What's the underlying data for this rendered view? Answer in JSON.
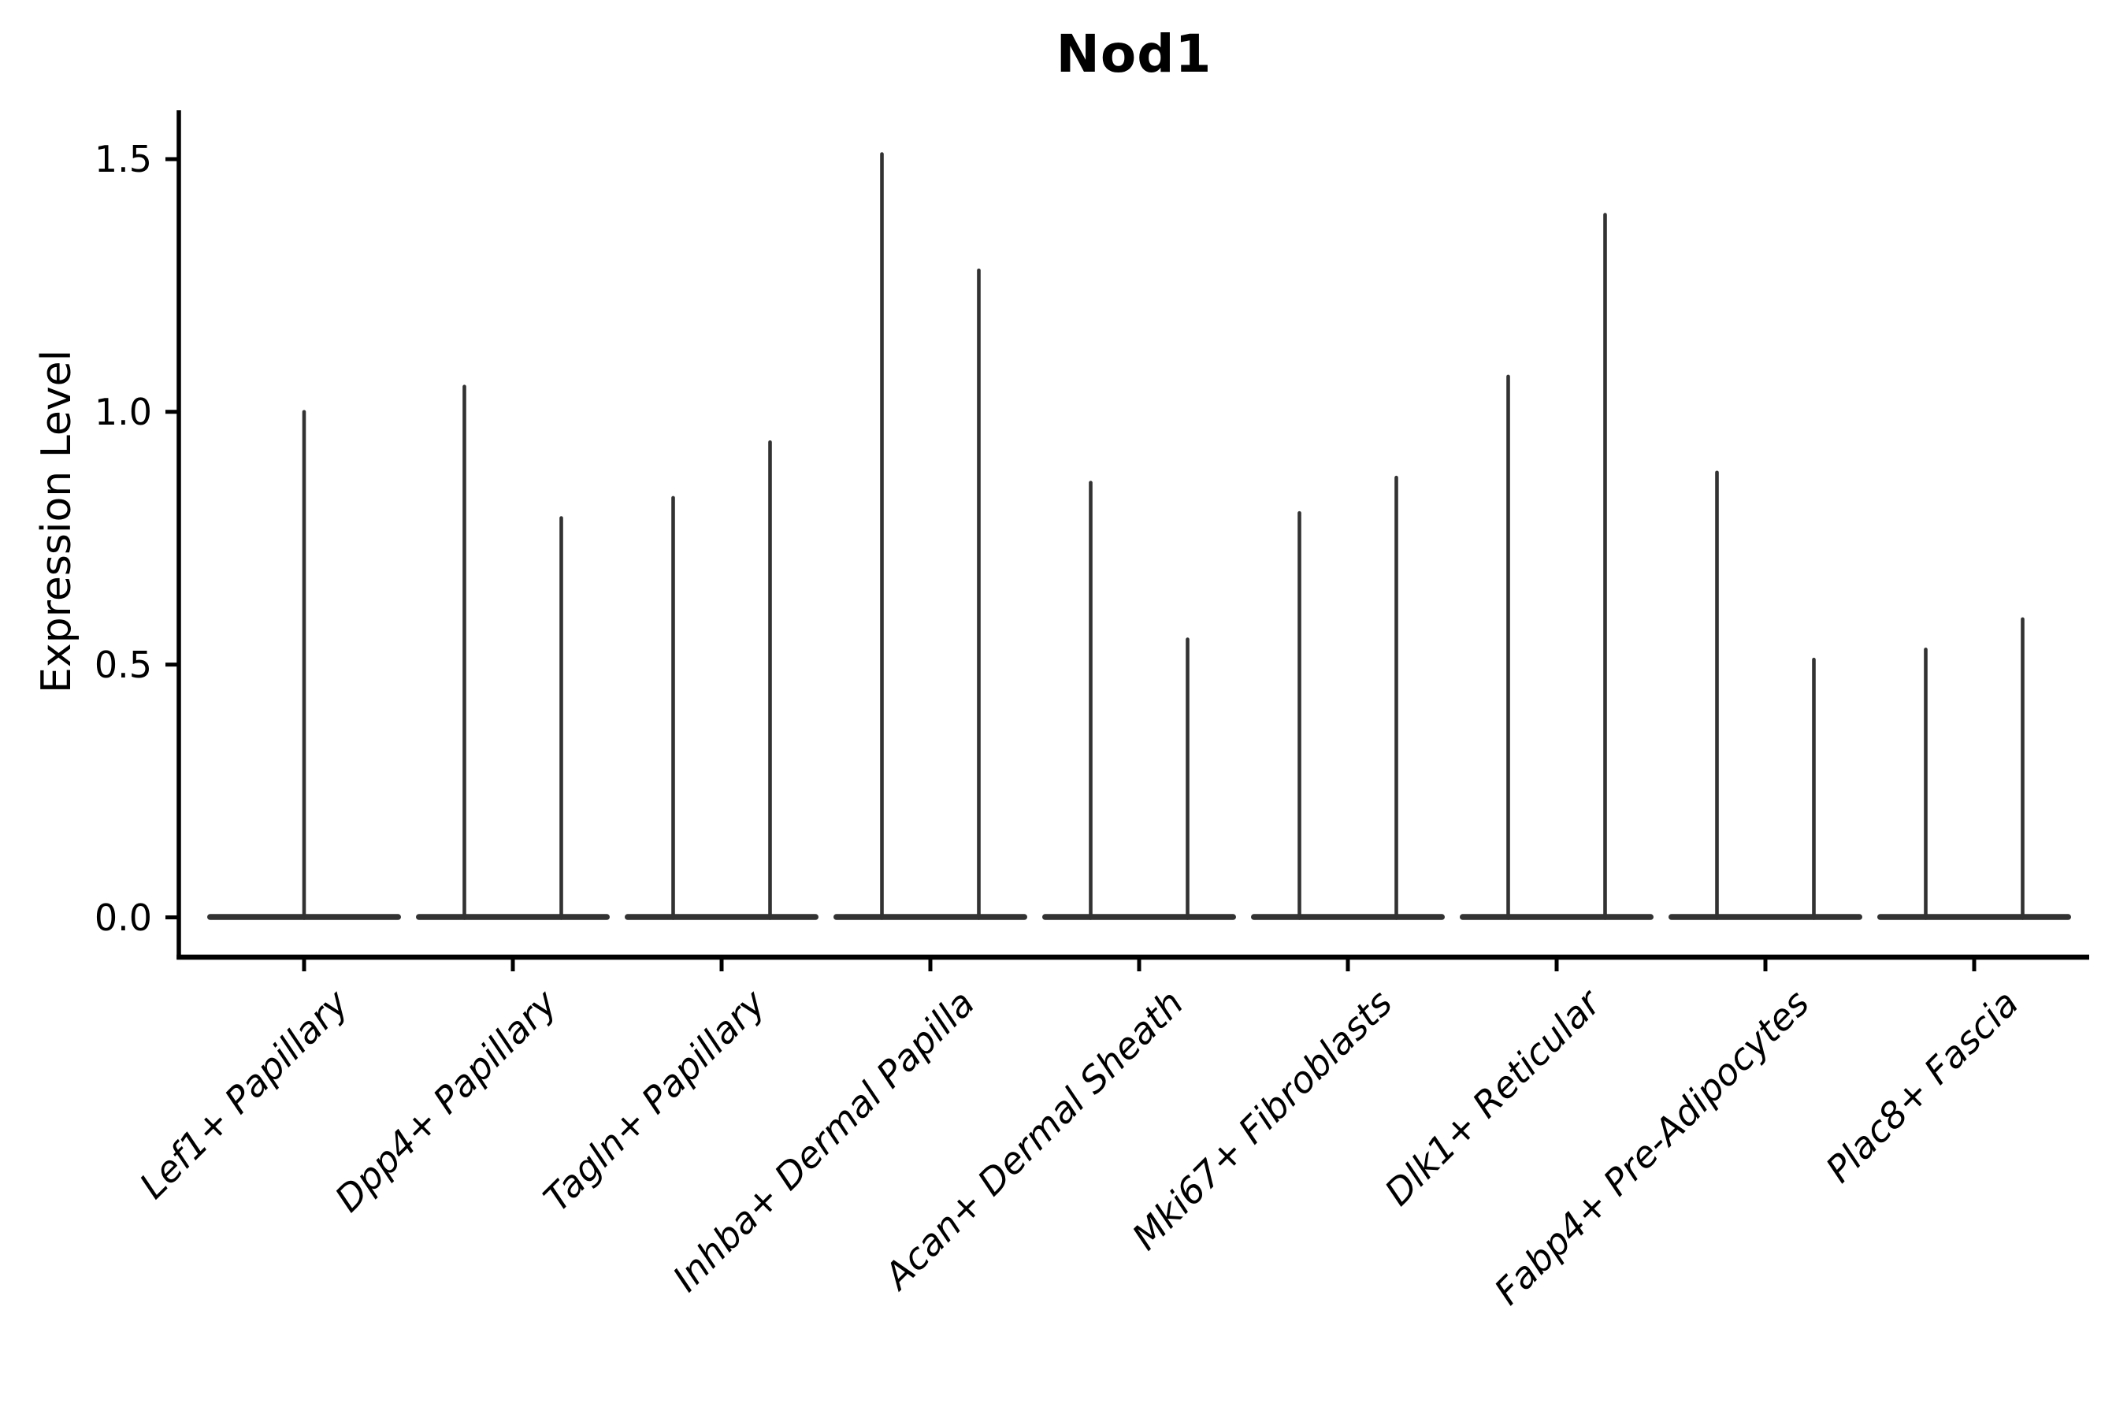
{
  "chart_data": {
    "type": "violin",
    "title": "Nod1",
    "ylabel": "Expression Level",
    "xlabel": "",
    "yticks": [
      0.0,
      0.5,
      1.0,
      1.5
    ],
    "ytick_labels": [
      "0.0",
      "0.5",
      "1.0",
      "1.5"
    ],
    "ylim": [
      -0.08,
      1.6
    ],
    "grid": false,
    "legend": "none",
    "categories": [
      "Lef1+ Papillary",
      "Dpp4+ Papillary",
      "Tagln+ Papillary",
      "Inhba+ Dermal Papilla",
      "Acan+ Dermal Sheath",
      "Mki67+ Fibroblasts",
      "Dlk1+ Reticular",
      "Fabp4+ Pre-Adipocytes",
      "Plac8+ Fascia"
    ],
    "violins": [
      {
        "category": "Lef1+ Papillary",
        "body_at": 0.0,
        "spikes": [
          {
            "position": 0,
            "max": 1.0
          }
        ]
      },
      {
        "category": "Dpp4+ Papillary",
        "body_at": 0.0,
        "spikes": [
          {
            "position": -1,
            "max": 1.05
          },
          {
            "position": 1,
            "max": 0.79
          }
        ]
      },
      {
        "category": "Tagln+ Papillary",
        "body_at": 0.0,
        "spikes": [
          {
            "position": -1,
            "max": 0.83
          },
          {
            "position": 1,
            "max": 0.94
          }
        ]
      },
      {
        "category": "Inhba+ Dermal Papilla",
        "body_at": 0.0,
        "spikes": [
          {
            "position": -1,
            "max": 1.51
          },
          {
            "position": 1,
            "max": 1.28
          }
        ]
      },
      {
        "category": "Acan+ Dermal Sheath",
        "body_at": 0.0,
        "spikes": [
          {
            "position": -1,
            "max": 0.86
          },
          {
            "position": 1,
            "max": 0.55
          }
        ]
      },
      {
        "category": "Mki67+ Fibroblasts",
        "body_at": 0.0,
        "spikes": [
          {
            "position": -1,
            "max": 0.8
          },
          {
            "position": 1,
            "max": 0.87
          }
        ]
      },
      {
        "category": "Dlk1+ Reticular",
        "body_at": 0.0,
        "spikes": [
          {
            "position": -1,
            "max": 1.07
          },
          {
            "position": 1,
            "max": 1.39
          }
        ]
      },
      {
        "category": "Fabp4+ Pre-Adipocytes",
        "body_at": 0.0,
        "spikes": [
          {
            "position": -1,
            "max": 0.88
          },
          {
            "position": 1,
            "max": 0.51
          }
        ]
      },
      {
        "category": "Plac8+ Fascia",
        "body_at": 0.0,
        "spikes": [
          {
            "position": -1,
            "max": 0.53
          },
          {
            "position": 1,
            "max": 0.59
          }
        ]
      }
    ],
    "colors": {
      "background": "#ffffff",
      "axis": "#000000",
      "violin": "#323232",
      "text": "#000000"
    }
  }
}
